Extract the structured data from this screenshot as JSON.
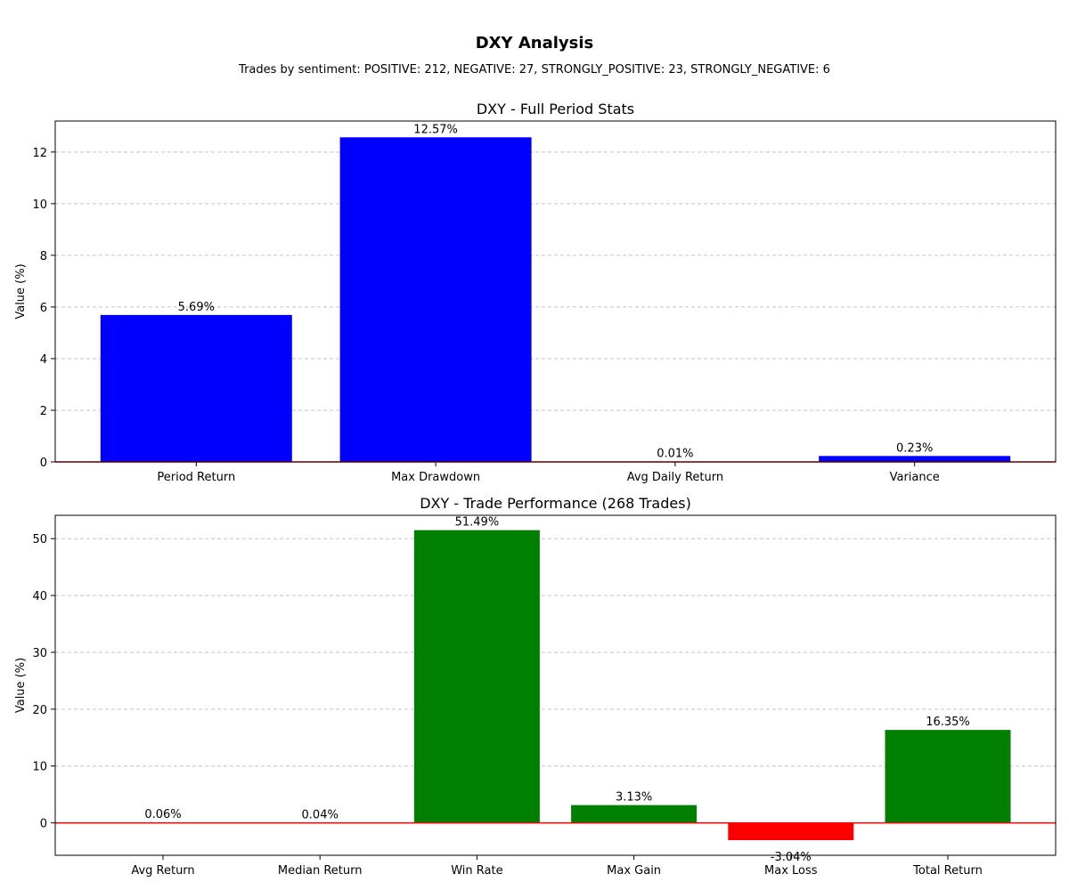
{
  "figure": {
    "title": "DXY Analysis",
    "subtitle": "Trades by sentiment: POSITIVE: 212, NEGATIVE: 27, STRONGLY_POSITIVE: 23, STRONGLY_NEGATIVE: 6"
  },
  "chart_data": [
    {
      "type": "bar",
      "title": "DXY - Full Period Stats",
      "xlabel": "",
      "ylabel": "Value (%)",
      "categories": [
        "Period Return",
        "Max Drawdown",
        "Avg Daily Return",
        "Variance"
      ],
      "values": [
        5.69,
        12.57,
        0.01,
        0.23
      ],
      "value_labels": [
        "5.69%",
        "12.57%",
        "0.01%",
        "0.23%"
      ],
      "colors": [
        "#0000ff",
        "#0000ff",
        "#0000ff",
        "#0000ff"
      ],
      "ylim": [
        0,
        13.2
      ],
      "yticks": [
        0,
        2,
        4,
        6,
        8,
        10,
        12
      ],
      "grid": "y-dashed",
      "zero_line_color": "#ff0000"
    },
    {
      "type": "bar",
      "title": "DXY - Trade Performance (268 Trades)",
      "xlabel": "",
      "ylabel": "Value (%)",
      "categories": [
        "Avg Return",
        "Median Return",
        "Win Rate",
        "Max Gain",
        "Max Loss",
        "Total Return"
      ],
      "values": [
        0.06,
        0.04,
        51.49,
        3.13,
        -3.04,
        16.35
      ],
      "value_labels": [
        "0.06%",
        "0.04%",
        "51.49%",
        "3.13%",
        "-3.04%",
        "16.35%"
      ],
      "colors": [
        "#008000",
        "#008000",
        "#008000",
        "#008000",
        "#ff0000",
        "#008000"
      ],
      "ylim": [
        -5.7,
        54.1
      ],
      "yticks": [
        0,
        10,
        20,
        30,
        40,
        50
      ],
      "grid": "y-dashed",
      "zero_line_color": "#ff0000"
    }
  ]
}
